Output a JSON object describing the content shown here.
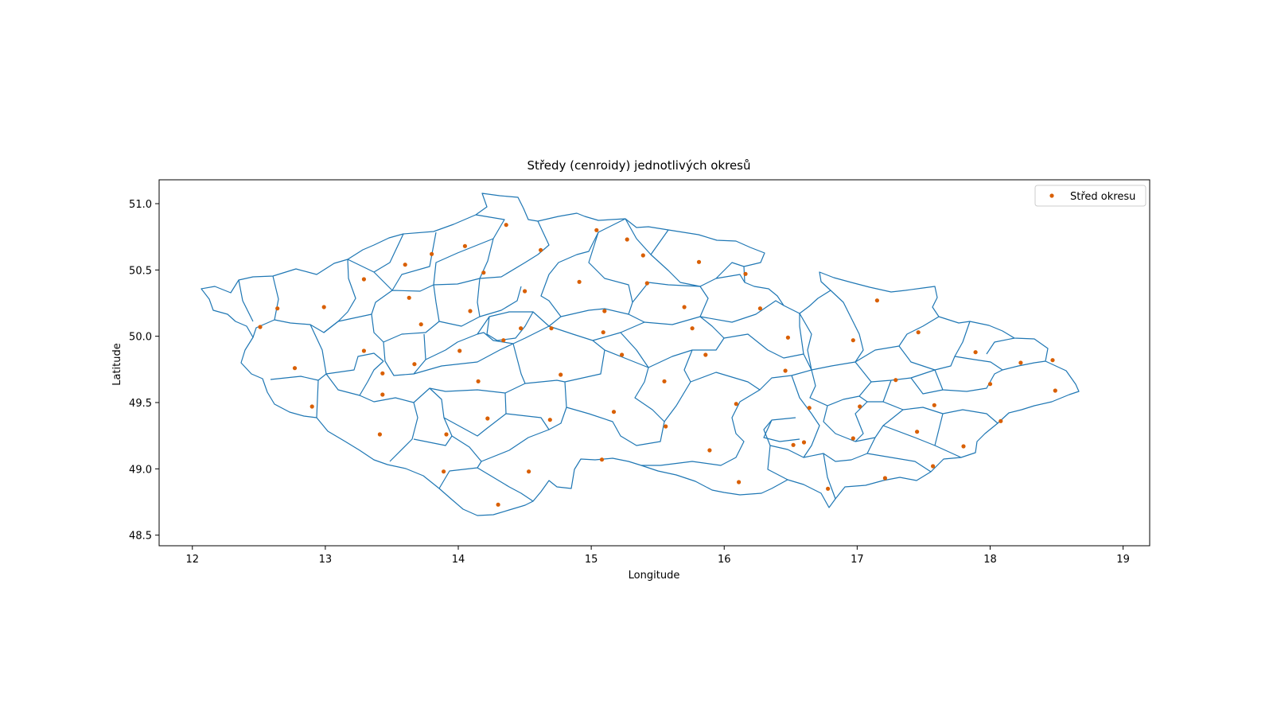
{
  "figure": {
    "title": "Středy (cenroidy) jednotlivých okresů",
    "xlabel": "Longitude",
    "ylabel": "Latitude"
  },
  "chart_data": {
    "type": "scatter",
    "title": "Středy (cenroidy) jednotlivých okresů",
    "xlabel": "Longitude",
    "ylabel": "Latitude",
    "xlim": [
      11.75,
      19.2
    ],
    "ylim": [
      48.42,
      51.18
    ],
    "xticks": [
      12,
      13,
      14,
      15,
      16,
      17,
      18,
      19
    ],
    "yticks": [
      48.5,
      49.0,
      49.5,
      50.0,
      50.5,
      51.0
    ],
    "ytick_labels": [
      "48.5",
      "49.0",
      "49.5",
      "50.0",
      "50.5",
      "51.0"
    ],
    "grid": false,
    "legend": {
      "placement": "top-right",
      "entries": [
        {
          "label": "Střed okresu",
          "color": "#d95f02",
          "marker": "dot"
        }
      ]
    },
    "boundary_color": "#1f77b4",
    "point_color": "#d95f02",
    "series": [
      {
        "name": "Střed okresu",
        "points": [
          [
            14.36,
            50.84
          ],
          [
            15.04,
            50.8
          ],
          [
            15.27,
            50.73
          ],
          [
            14.05,
            50.68
          ],
          [
            13.8,
            50.62
          ],
          [
            14.62,
            50.65
          ],
          [
            15.39,
            50.61
          ],
          [
            13.6,
            50.54
          ],
          [
            15.81,
            50.56
          ],
          [
            14.19,
            50.48
          ],
          [
            16.16,
            50.47
          ],
          [
            13.29,
            50.43
          ],
          [
            14.91,
            50.41
          ],
          [
            15.42,
            50.4
          ],
          [
            14.5,
            50.34
          ],
          [
            13.63,
            50.29
          ],
          [
            17.15,
            50.27
          ],
          [
            12.64,
            50.21
          ],
          [
            12.99,
            50.22
          ],
          [
            15.7,
            50.22
          ],
          [
            16.27,
            50.21
          ],
          [
            14.09,
            50.19
          ],
          [
            15.1,
            50.19
          ],
          [
            13.72,
            50.09
          ],
          [
            12.51,
            50.07
          ],
          [
            14.47,
            50.06
          ],
          [
            14.7,
            50.06
          ],
          [
            15.76,
            50.06
          ],
          [
            15.09,
            50.03
          ],
          [
            17.46,
            50.03
          ],
          [
            16.48,
            49.99
          ],
          [
            14.34,
            49.97
          ],
          [
            16.97,
            49.97
          ],
          [
            13.29,
            49.89
          ],
          [
            14.01,
            49.89
          ],
          [
            17.89,
            49.88
          ],
          [
            15.23,
            49.86
          ],
          [
            15.86,
            49.86
          ],
          [
            18.47,
            49.82
          ],
          [
            18.23,
            49.8
          ],
          [
            13.67,
            49.79
          ],
          [
            12.77,
            49.76
          ],
          [
            16.46,
            49.74
          ],
          [
            13.43,
            49.72
          ],
          [
            14.77,
            49.71
          ],
          [
            17.29,
            49.67
          ],
          [
            14.15,
            49.66
          ],
          [
            15.55,
            49.66
          ],
          [
            18.0,
            49.64
          ],
          [
            18.49,
            49.59
          ],
          [
            13.43,
            49.56
          ],
          [
            16.09,
            49.49
          ],
          [
            12.9,
            49.47
          ],
          [
            17.02,
            49.47
          ],
          [
            17.58,
            49.48
          ],
          [
            16.64,
            49.46
          ],
          [
            15.17,
            49.43
          ],
          [
            14.22,
            49.38
          ],
          [
            14.69,
            49.37
          ],
          [
            18.08,
            49.36
          ],
          [
            15.56,
            49.32
          ],
          [
            17.45,
            49.28
          ],
          [
            13.41,
            49.26
          ],
          [
            13.91,
            49.26
          ],
          [
            16.97,
            49.23
          ],
          [
            16.6,
            49.2
          ],
          [
            16.52,
            49.18
          ],
          [
            17.8,
            49.17
          ],
          [
            15.89,
            49.14
          ],
          [
            15.08,
            49.07
          ],
          [
            17.57,
            49.02
          ],
          [
            13.89,
            48.98
          ],
          [
            14.53,
            48.98
          ],
          [
            17.21,
            48.93
          ],
          [
            16.11,
            48.9
          ],
          [
            16.78,
            48.85
          ],
          [
            14.3,
            48.73
          ]
        ]
      }
    ]
  }
}
